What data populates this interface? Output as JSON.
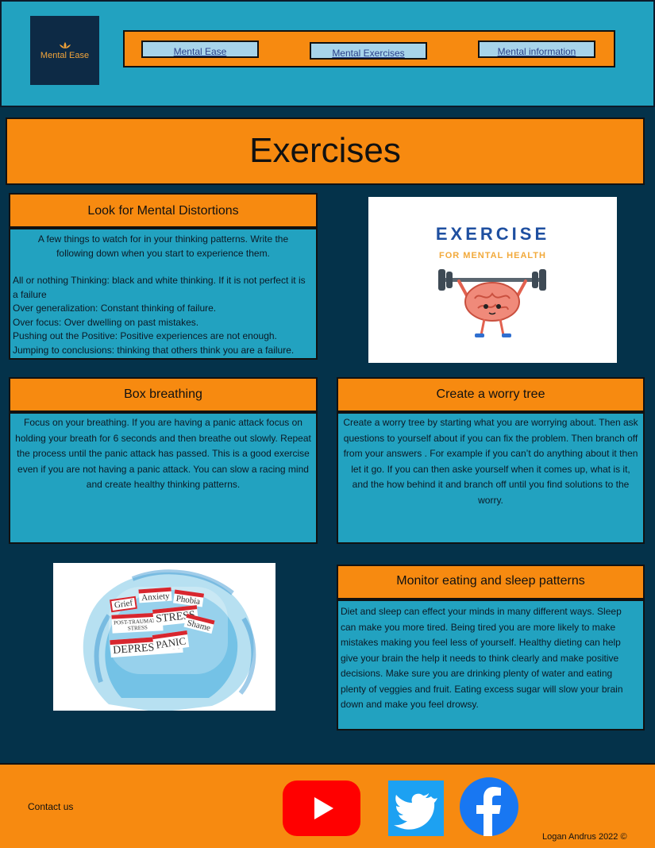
{
  "header": {
    "logo_text": "Mental Ease",
    "nav": [
      {
        "label": "Mental Ease"
      },
      {
        "label": "Mental Exercises"
      },
      {
        "label": "Mental information"
      }
    ]
  },
  "page_title": "Exercises",
  "cards": {
    "distortions": {
      "title": "Look for Mental Distortions",
      "intro": "A few things to watch for in your thinking patterns. Write the following down when you start to experience them.",
      "items": [
        "All or nothing  Thinking: black and white thinking. If it is not perfect it is a failure",
        "Over generalization: Constant thinking of failure.",
        "Over focus: Over dwelling on past mistakes.",
        "Pushing out the Positive: Positive experiences are not enough.",
        "Jumping to conclusions: thinking that others think you are a failure."
      ]
    },
    "box_breathing": {
      "title": "Box breathing",
      "body": "Focus on your breathing. If you are having a panic attack focus on holding your breath for 6 seconds and then breathe out slowly. Repeat the process until the panic attack has passed. This is a good exercise even if you are not having a panic attack. You can slow a racing mind and create healthy thinking patterns."
    },
    "worry_tree": {
      "title": "Create a worry tree",
      "body": "Create a worry tree by starting what you are worrying about. Then ask questions to yourself about if you can fix the problem. Then branch off from your answers . For example if you can’t do anything about it then let it go. If you can then aske yourself when it comes up, what is it, and the how behind it and branch off until you find solutions to the worry."
    },
    "eating_sleep": {
      "title": "Monitor eating and sleep patterns",
      "body": "Diet and sleep can effect your minds in many different ways. Sleep can make you more tired. Being tired you are more likely to make mistakes making you feel less of yourself. Healthy dieting can help give your brain the help it needs to think clearly and make positive decisions. Make sure you are drinking plenty of water and eating plenty of veggies and fruit. Eating excess sugar will slow your brain down and make you feel drowsy."
    }
  },
  "exercise_image": {
    "heading": "EXERCISE",
    "subheading": "FOR MENTAL HEALTH"
  },
  "head_image": {
    "labels": [
      "Grief",
      "Anxiety",
      "Phobia",
      "POST-TRAUMATIC STRESS",
      "STRESS",
      "Shame",
      "DEPRESSION",
      "PANIC"
    ]
  },
  "footer": {
    "contact": "Contact us",
    "copyright": "Logan Andrus 2022 ©",
    "social_icons": [
      "youtube-icon",
      "twitter-icon",
      "facebook-icon"
    ]
  },
  "colors": {
    "accent_orange": "#f78a10",
    "panel_blue": "#22a2c0",
    "background_navy": "#04324a"
  }
}
